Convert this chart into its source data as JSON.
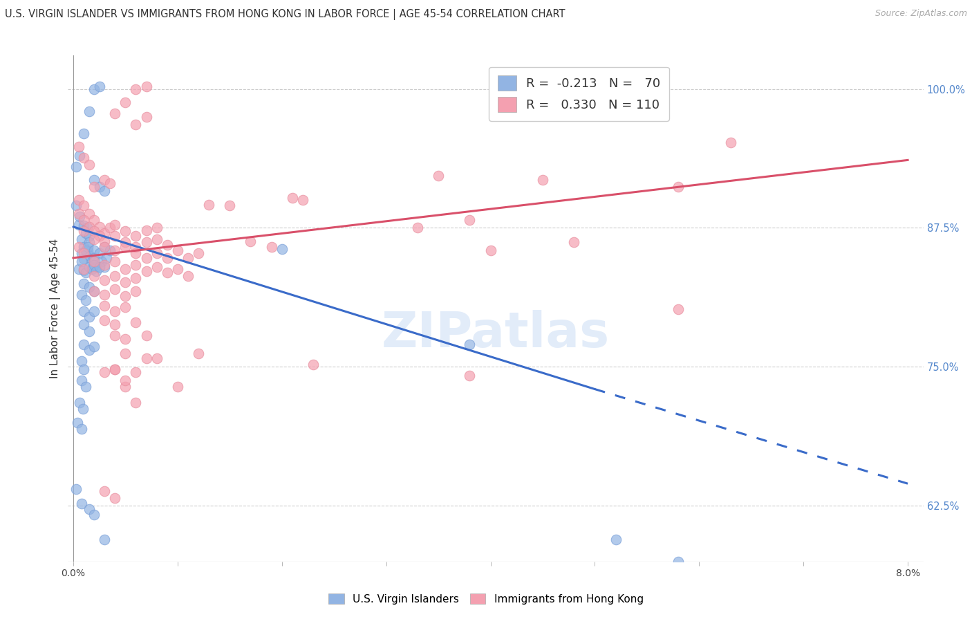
{
  "title": "U.S. VIRGIN ISLANDER VS IMMIGRANTS FROM HONG KONG IN LABOR FORCE | AGE 45-54 CORRELATION CHART",
  "source": "Source: ZipAtlas.com",
  "ylabel": "In Labor Force | Age 45-54",
  "yaxis_labels": [
    "62.5%",
    "75.0%",
    "87.5%",
    "100.0%"
  ],
  "ymin": 0.575,
  "ymax": 1.03,
  "xmin": -0.0005,
  "xmax": 0.0815,
  "blue_color": "#92b4e3",
  "pink_color": "#f4a0b0",
  "blue_line_color": "#3a6bc9",
  "pink_line_color": "#d9506a",
  "watermark": "ZIPatlas",
  "blue_line_solid": [
    [
      0.0,
      0.876
    ],
    [
      0.05,
      0.73
    ]
  ],
  "blue_line_dashed": [
    [
      0.05,
      0.73
    ],
    [
      0.08,
      0.645
    ]
  ],
  "pink_line": [
    [
      0.0,
      0.848
    ],
    [
      0.08,
      0.936
    ]
  ],
  "blue_scatter": [
    [
      0.0003,
      0.895
    ],
    [
      0.0005,
      0.878
    ],
    [
      0.0006,
      0.885
    ],
    [
      0.0008,
      0.865
    ],
    [
      0.001,
      0.877
    ],
    [
      0.001,
      0.858
    ],
    [
      0.0012,
      0.87
    ],
    [
      0.0013,
      0.875
    ],
    [
      0.0014,
      0.855
    ],
    [
      0.0015,
      0.868
    ],
    [
      0.0015,
      0.862
    ],
    [
      0.0008,
      0.852
    ],
    [
      0.001,
      0.847
    ],
    [
      0.0012,
      0.855
    ],
    [
      0.0014,
      0.858
    ],
    [
      0.0016,
      0.85
    ],
    [
      0.0018,
      0.845
    ],
    [
      0.002,
      0.855
    ],
    [
      0.002,
      0.848
    ],
    [
      0.0022,
      0.84
    ],
    [
      0.0025,
      0.852
    ],
    [
      0.0027,
      0.845
    ],
    [
      0.003,
      0.858
    ],
    [
      0.003,
      0.84
    ],
    [
      0.0032,
      0.848
    ],
    [
      0.0035,
      0.855
    ],
    [
      0.0005,
      0.838
    ],
    [
      0.0008,
      0.845
    ],
    [
      0.001,
      0.837
    ],
    [
      0.0012,
      0.835
    ],
    [
      0.0015,
      0.84
    ],
    [
      0.0018,
      0.838
    ],
    [
      0.002,
      0.842
    ],
    [
      0.0022,
      0.836
    ],
    [
      0.0025,
      0.84
    ],
    [
      0.001,
      0.825
    ],
    [
      0.0015,
      0.822
    ],
    [
      0.002,
      0.818
    ],
    [
      0.0008,
      0.815
    ],
    [
      0.0012,
      0.81
    ],
    [
      0.001,
      0.8
    ],
    [
      0.0015,
      0.795
    ],
    [
      0.002,
      0.8
    ],
    [
      0.001,
      0.788
    ],
    [
      0.0015,
      0.782
    ],
    [
      0.001,
      0.77
    ],
    [
      0.0015,
      0.765
    ],
    [
      0.002,
      0.768
    ],
    [
      0.0008,
      0.755
    ],
    [
      0.001,
      0.748
    ],
    [
      0.0008,
      0.738
    ],
    [
      0.0012,
      0.732
    ],
    [
      0.0006,
      0.718
    ],
    [
      0.0009,
      0.712
    ],
    [
      0.0004,
      0.7
    ],
    [
      0.0008,
      0.694
    ],
    [
      0.0003,
      0.64
    ],
    [
      0.0008,
      0.627
    ],
    [
      0.0015,
      0.622
    ],
    [
      0.002,
      0.617
    ],
    [
      0.003,
      0.595
    ],
    [
      0.0003,
      0.93
    ],
    [
      0.0006,
      0.94
    ],
    [
      0.001,
      0.96
    ],
    [
      0.0015,
      0.98
    ],
    [
      0.002,
      1.0
    ],
    [
      0.0025,
      1.002
    ],
    [
      0.002,
      0.918
    ],
    [
      0.0025,
      0.912
    ],
    [
      0.003,
      0.908
    ],
    [
      0.02,
      0.856
    ],
    [
      0.038,
      0.77
    ],
    [
      0.052,
      0.595
    ],
    [
      0.058,
      0.575
    ]
  ],
  "pink_scatter": [
    [
      0.0005,
      0.9
    ],
    [
      0.001,
      0.895
    ],
    [
      0.0015,
      0.888
    ],
    [
      0.002,
      0.882
    ],
    [
      0.0025,
      0.876
    ],
    [
      0.003,
      0.87
    ],
    [
      0.0035,
      0.875
    ],
    [
      0.004,
      0.878
    ],
    [
      0.005,
      0.872
    ],
    [
      0.006,
      0.868
    ],
    [
      0.007,
      0.873
    ],
    [
      0.008,
      0.875
    ],
    [
      0.0005,
      0.888
    ],
    [
      0.001,
      0.882
    ],
    [
      0.0015,
      0.876
    ],
    [
      0.002,
      0.872
    ],
    [
      0.0025,
      0.868
    ],
    [
      0.003,
      0.863
    ],
    [
      0.004,
      0.868
    ],
    [
      0.005,
      0.862
    ],
    [
      0.006,
      0.858
    ],
    [
      0.007,
      0.862
    ],
    [
      0.008,
      0.865
    ],
    [
      0.009,
      0.86
    ],
    [
      0.001,
      0.872
    ],
    [
      0.002,
      0.865
    ],
    [
      0.003,
      0.858
    ],
    [
      0.004,
      0.855
    ],
    [
      0.005,
      0.858
    ],
    [
      0.006,
      0.852
    ],
    [
      0.007,
      0.848
    ],
    [
      0.008,
      0.852
    ],
    [
      0.009,
      0.848
    ],
    [
      0.01,
      0.855
    ],
    [
      0.011,
      0.848
    ],
    [
      0.012,
      0.852
    ],
    [
      0.0005,
      0.858
    ],
    [
      0.001,
      0.852
    ],
    [
      0.002,
      0.845
    ],
    [
      0.003,
      0.842
    ],
    [
      0.004,
      0.845
    ],
    [
      0.005,
      0.838
    ],
    [
      0.006,
      0.842
    ],
    [
      0.007,
      0.836
    ],
    [
      0.008,
      0.84
    ],
    [
      0.009,
      0.835
    ],
    [
      0.01,
      0.838
    ],
    [
      0.011,
      0.832
    ],
    [
      0.001,
      0.838
    ],
    [
      0.002,
      0.832
    ],
    [
      0.003,
      0.828
    ],
    [
      0.004,
      0.832
    ],
    [
      0.005,
      0.826
    ],
    [
      0.006,
      0.83
    ],
    [
      0.002,
      0.818
    ],
    [
      0.003,
      0.815
    ],
    [
      0.004,
      0.82
    ],
    [
      0.005,
      0.814
    ],
    [
      0.006,
      0.818
    ],
    [
      0.003,
      0.805
    ],
    [
      0.004,
      0.8
    ],
    [
      0.005,
      0.804
    ],
    [
      0.003,
      0.792
    ],
    [
      0.004,
      0.788
    ],
    [
      0.006,
      0.79
    ],
    [
      0.004,
      0.778
    ],
    [
      0.005,
      0.775
    ],
    [
      0.007,
      0.778
    ],
    [
      0.005,
      0.762
    ],
    [
      0.007,
      0.758
    ],
    [
      0.004,
      0.748
    ],
    [
      0.006,
      0.745
    ],
    [
      0.005,
      0.732
    ],
    [
      0.006,
      0.718
    ],
    [
      0.005,
      0.738
    ],
    [
      0.003,
      0.638
    ],
    [
      0.004,
      0.632
    ],
    [
      0.003,
      0.745
    ],
    [
      0.004,
      0.748
    ],
    [
      0.0005,
      0.948
    ],
    [
      0.001,
      0.938
    ],
    [
      0.0015,
      0.932
    ],
    [
      0.002,
      0.912
    ],
    [
      0.003,
      0.918
    ],
    [
      0.0035,
      0.915
    ],
    [
      0.004,
      0.978
    ],
    [
      0.005,
      0.988
    ],
    [
      0.006,
      1.0
    ],
    [
      0.007,
      1.002
    ],
    [
      0.006,
      0.968
    ],
    [
      0.007,
      0.975
    ],
    [
      0.015,
      0.895
    ],
    [
      0.022,
      0.9
    ],
    [
      0.035,
      0.922
    ],
    [
      0.045,
      0.918
    ],
    [
      0.058,
      0.912
    ],
    [
      0.063,
      0.952
    ],
    [
      0.04,
      0.855
    ],
    [
      0.048,
      0.862
    ],
    [
      0.033,
      0.875
    ],
    [
      0.038,
      0.882
    ],
    [
      0.058,
      0.802
    ],
    [
      0.019,
      0.858
    ],
    [
      0.017,
      0.863
    ],
    [
      0.013,
      0.896
    ],
    [
      0.021,
      0.902
    ],
    [
      0.008,
      0.758
    ],
    [
      0.01,
      0.732
    ],
    [
      0.012,
      0.762
    ],
    [
      0.023,
      0.752
    ],
    [
      0.038,
      0.742
    ]
  ]
}
